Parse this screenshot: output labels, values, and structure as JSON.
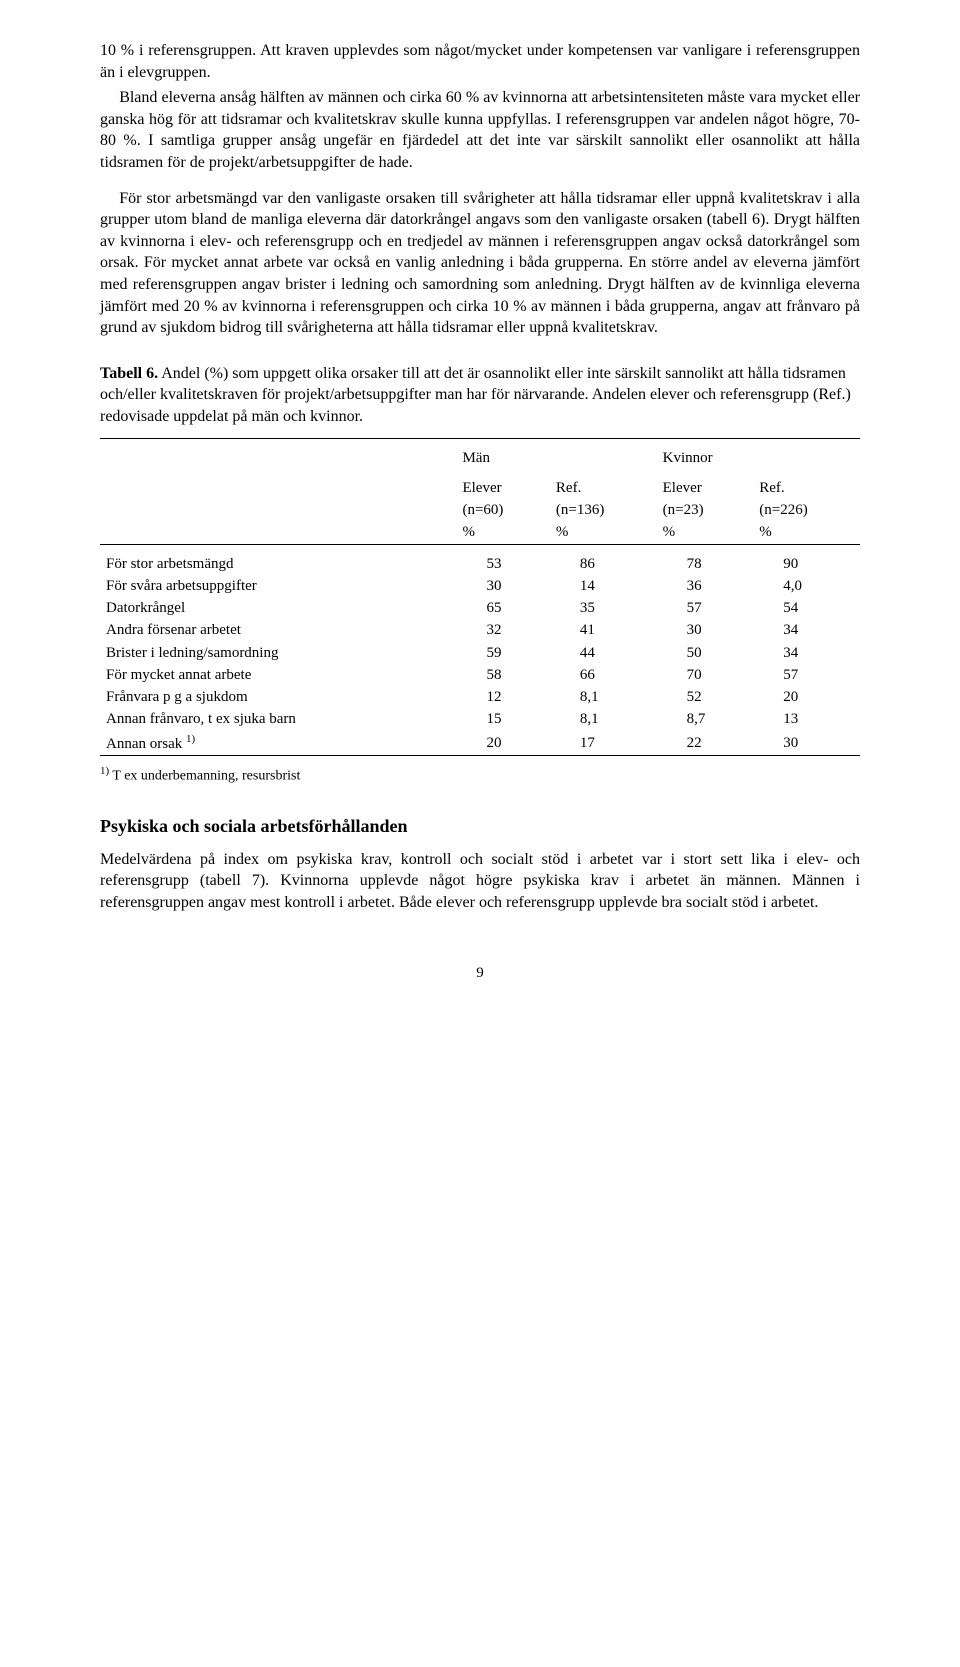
{
  "body1": "10 % i referensgruppen. Att kraven upplevdes som något/mycket under kompetensen var vanligare i referensgruppen än i elevgruppen.",
  "body2": "Bland eleverna ansåg hälften av männen och cirka 60 % av kvinnorna att arbetsintensiteten måste vara mycket eller ganska hög för att tidsramar och kvalitetskrav skulle kunna uppfyllas. I referensgruppen var andelen något högre, 70-80 %. I samtliga grupper ansåg ungefär en fjärdedel att det inte var särskilt sannolikt eller osannolikt att hålla tidsramen för de projekt/arbetsuppgifter de hade.",
  "body3": "För stor arbetsmängd var den vanligaste orsaken till svårigheter att hålla tidsramar eller uppnå kvalitetskrav i alla grupper utom bland de manliga eleverna där datorkrångel angavs som den vanligaste orsaken (tabell 6). Drygt hälften av kvinnorna i elev- och referensgrupp och en tredjedel av männen i referensgruppen angav också datorkrångel som orsak. För mycket annat arbete var också en vanlig anledning i båda grupperna. En större andel av eleverna jämfört med referensgruppen angav brister i ledning och samordning som anledning. Drygt hälften av de kvinnliga eleverna jämfört med 20 % av kvinnorna i referensgruppen och cirka 10 % av männen i båda grupperna, angav att frånvaro på grund av sjukdom bidrog till svårigheterna att hålla tidsramar eller uppnå kvalitetskrav.",
  "table6": {
    "caption_bold": "Tabell 6.",
    "caption_rest": " Andel (%) som uppgett olika orsaker till att det är osannolikt eller inte särskilt sannolikt att hålla tidsramen och/eller kvalitetskraven för projekt/arbetsuppgifter man har för närvarande. Andelen elever och referensgrupp (Ref.) redovisade uppdelat på män och kvinnor.",
    "group1": "Män",
    "group2": "Kvinnor",
    "col1_l1": "Elever",
    "col1_l2": "(n=60)",
    "col1_l3": "%",
    "col2_l1": "Ref.",
    "col2_l2": "(n=136)",
    "col2_l3": "%",
    "col3_l1": "Elever",
    "col3_l2": "(n=23)",
    "col3_l3": "%",
    "col4_l1": "Ref.",
    "col4_l2": "(n=226)",
    "col4_l3": "%",
    "rows": [
      {
        "label": "För stor arbetsmängd",
        "v": [
          "53",
          "86",
          "78",
          "90"
        ]
      },
      {
        "label": "För svåra arbetsuppgifter",
        "v": [
          "30",
          "14",
          "36",
          "4,0"
        ]
      },
      {
        "label": "Datorkrångel",
        "v": [
          "65",
          "35",
          "57",
          "54"
        ]
      },
      {
        "label": "Andra försenar arbetet",
        "v": [
          "32",
          "41",
          "30",
          "34"
        ]
      },
      {
        "label": "Brister i ledning/samordning",
        "v": [
          "59",
          "44",
          "50",
          "34"
        ]
      },
      {
        "label": "För mycket annat arbete",
        "v": [
          "58",
          "66",
          "70",
          "57"
        ]
      },
      {
        "label": "Frånvara p g a sjukdom",
        "v": [
          "12",
          "8,1",
          "52",
          "20"
        ]
      },
      {
        "label": "Annan frånvaro, t ex sjuka barn",
        "v": [
          "15",
          "8,1",
          "8,7",
          "13"
        ]
      }
    ],
    "lastrow_label_pre": "Annan orsak ",
    "lastrow_sup": "1)",
    "lastrow_v": [
      "20",
      "17",
      "22",
      "30"
    ],
    "footnote_sup": "1)",
    "footnote_text": " T ex underbemanning, resursbrist"
  },
  "heading": "Psykiska och sociala arbetsförhållanden",
  "body4": "Medelvärdena på index om psykiska krav, kontroll och socialt stöd i arbetet var i stort sett lika i elev- och referensgrupp (tabell 7). Kvinnorna upplevde något högre psykiska krav i arbetet än männen. Männen i referensgruppen angav mest kontroll i arbetet. Både elever och referensgrupp upplevde bra socialt stöd i arbetet.",
  "pagenum": "9"
}
